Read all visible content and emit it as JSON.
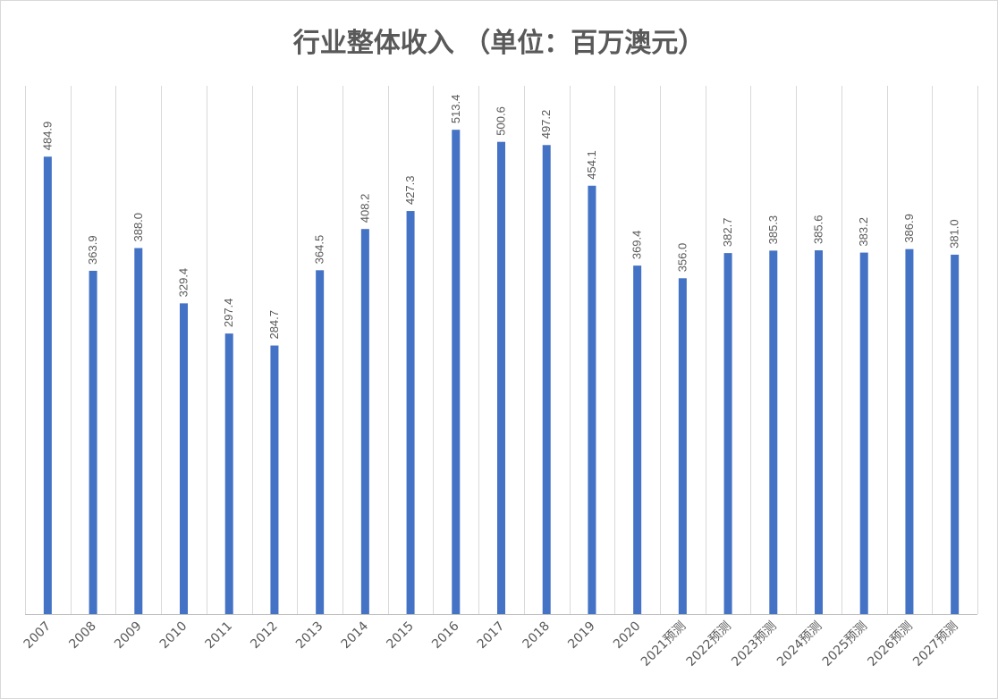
{
  "chart_data": {
    "type": "bar",
    "title": "行业整体收入 （单位：百万澳元）",
    "xlabel": "",
    "ylabel": "",
    "ylim": [
      0,
      560
    ],
    "grid": "vertical-category-lines",
    "legend": "none",
    "bar_color": "#4472c4",
    "categories": [
      "2007",
      "2008",
      "2009",
      "2010",
      "2011",
      "2012",
      "2013",
      "2014",
      "2015",
      "2016",
      "2017",
      "2018",
      "2019",
      "2020",
      "2021预测",
      "2022预测",
      "2023预测",
      "2024预测",
      "2025预测",
      "2026预测",
      "2027预测"
    ],
    "values": [
      484.9,
      363.9,
      388.0,
      329.4,
      297.4,
      284.7,
      364.5,
      408.2,
      427.3,
      513.4,
      500.6,
      497.2,
      454.1,
      369.4,
      356.0,
      382.7,
      385.3,
      385.6,
      383.2,
      386.9,
      381.0
    ],
    "data_labels": [
      "484.9",
      "363.9",
      "388.0",
      "329.4",
      "297.4",
      "284.7",
      "364.5",
      "408.2",
      "427.3",
      "513.4",
      "500.6",
      "497.2",
      "454.1",
      "369.4",
      "356.0",
      "382.7",
      "385.3",
      "385.6",
      "383.2",
      "386.9",
      "381.0"
    ]
  }
}
